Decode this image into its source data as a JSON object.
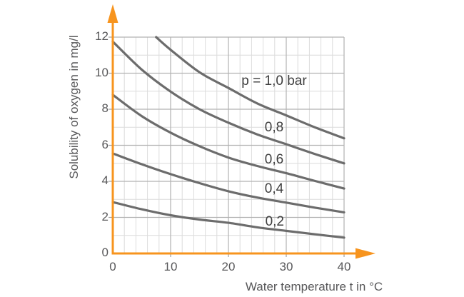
{
  "colors": {
    "axis_orange": "#F7941E",
    "curve_gray": "#6C6C6C",
    "grid_minor": "#DCDCDC",
    "grid_major": "#B2B2B2",
    "tick_stub": "#9E9E9E",
    "tick_text": "#58585A",
    "curve_label_text": "#3E3E3E"
  },
  "chart_data": {
    "type": "line",
    "title": "",
    "xlabel": "Water temperature t in °C",
    "ylabel": "Solubility of oxygen in mg/l",
    "xlim": [
      0,
      40
    ],
    "ylim": [
      0,
      12
    ],
    "x_ticks": [
      0,
      10,
      20,
      30,
      40
    ],
    "y_ticks": [
      0,
      2,
      4,
      6,
      8,
      10,
      12
    ],
    "grid": {
      "x_minor_step": 2,
      "x_major_step": 10,
      "y_minor_step": 1,
      "y_major_step": 2,
      "grid_on": true
    },
    "legend_position": "labels-on-chart",
    "series": [
      {
        "name": "p = 1,0 bar",
        "label": "p = 1,0 bar",
        "pressure_bar": 1.0,
        "label_anchor": {
          "t": 27.9,
          "s": 9.55
        },
        "points": [
          [
            7.5,
            12.0
          ],
          [
            10,
            11.3
          ],
          [
            15,
            10.05
          ],
          [
            20,
            9.18
          ],
          [
            25,
            8.32
          ],
          [
            30,
            7.66
          ],
          [
            35,
            6.99
          ],
          [
            40,
            6.39
          ]
        ]
      },
      {
        "name": "0,8",
        "label": "0,8",
        "pressure_bar": 0.8,
        "label_anchor": {
          "t": 27.9,
          "s": 6.97
        },
        "points": [
          [
            0,
            11.75
          ],
          [
            5,
            10.2
          ],
          [
            10,
            8.98
          ],
          [
            15,
            8.0
          ],
          [
            20,
            7.25
          ],
          [
            25,
            6.6
          ],
          [
            30,
            6.06
          ],
          [
            35,
            5.51
          ],
          [
            40,
            5.0
          ]
        ]
      },
      {
        "name": "0,6",
        "label": "0,6",
        "pressure_bar": 0.6,
        "label_anchor": {
          "t": 27.9,
          "s": 5.19
        },
        "points": [
          [
            0,
            8.8
          ],
          [
            5,
            7.62
          ],
          [
            10,
            6.7
          ],
          [
            15,
            5.95
          ],
          [
            20,
            5.32
          ],
          [
            25,
            4.85
          ],
          [
            30,
            4.45
          ],
          [
            35,
            4.02
          ],
          [
            40,
            3.6
          ]
        ]
      },
      {
        "name": "0,4",
        "label": "0,4",
        "pressure_bar": 0.4,
        "label_anchor": {
          "t": 27.9,
          "s": 3.55
        },
        "points": [
          [
            0,
            5.55
          ],
          [
            5,
            4.95
          ],
          [
            10,
            4.4
          ],
          [
            15,
            3.9
          ],
          [
            20,
            3.45
          ],
          [
            25,
            3.1
          ],
          [
            30,
            2.82
          ],
          [
            35,
            2.54
          ],
          [
            40,
            2.28
          ]
        ]
      },
      {
        "name": "0,2",
        "label": "0,2",
        "pressure_bar": 0.2,
        "label_anchor": {
          "t": 28.0,
          "s": 1.74
        },
        "points": [
          [
            0,
            2.85
          ],
          [
            5,
            2.45
          ],
          [
            10,
            2.12
          ],
          [
            15,
            1.88
          ],
          [
            20,
            1.7
          ],
          [
            25,
            1.45
          ],
          [
            30,
            1.25
          ],
          [
            35,
            1.06
          ],
          [
            40,
            0.88
          ]
        ]
      }
    ]
  }
}
